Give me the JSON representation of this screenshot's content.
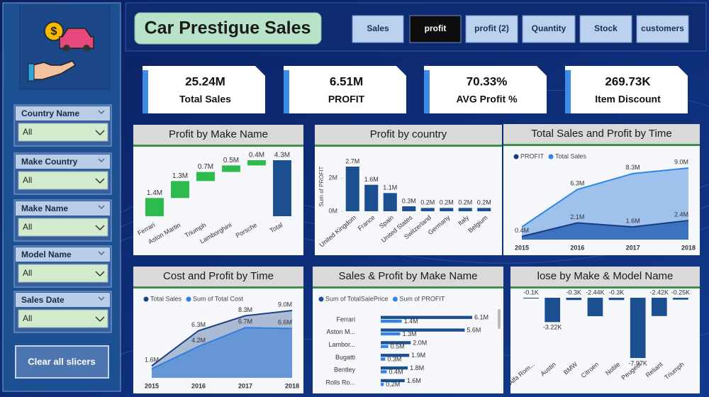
{
  "title": "Car Prestigue Sales",
  "tabs": [
    "Sales",
    "profit",
    "profit (2)",
    "Quantity",
    "Stock",
    "customers"
  ],
  "active_tab": 1,
  "slicers": [
    {
      "label": "Country Name",
      "value": "All"
    },
    {
      "label": "Make Country",
      "value": "All"
    },
    {
      "label": "Make Name",
      "value": "All"
    },
    {
      "label": "Model Name",
      "value": "All"
    },
    {
      "label": "Sales Date",
      "value": "All"
    }
  ],
  "clear_button": "Clear all slicers",
  "kpis": [
    {
      "value": "25.24M",
      "label": "Total Sales"
    },
    {
      "value": "6.51M",
      "label": "PROFIT"
    },
    {
      "value": "70.33%",
      "label": "AVG Profit %"
    },
    {
      "value": "269.73K",
      "label": "Item Discount"
    }
  ],
  "charts": [
    {
      "type": "waterfall",
      "title": "Profit by Make Name",
      "categories": [
        "Ferrari",
        "Aston Martin",
        "Triumph",
        "Lamborghini",
        "Porsche",
        "Total"
      ],
      "values": [
        1400000,
        1300000,
        700000,
        500000,
        400000,
        4300000
      ],
      "value_labels": [
        "1.4M",
        "1.3M",
        "0.7M",
        "0.5M",
        "0.4M",
        "4.3M"
      ],
      "color": "#2dbb4e",
      "total_color": "#1c4f8f"
    },
    {
      "type": "bar",
      "title": "Profit by country",
      "ylabel": "Sum of PROFIT",
      "categories": [
        "United Kingdom",
        "France",
        "Spain",
        "United States",
        "Switzerland",
        "Germany",
        "Italy",
        "Belgium"
      ],
      "values": [
        2700000,
        1600000,
        1100000,
        300000,
        200000,
        200000,
        200000,
        200000
      ],
      "value_labels": [
        "2.7M",
        "1.6M",
        "1.1M",
        "0.3M",
        "0.2M",
        "0.2M",
        "0.2M",
        "0.2M"
      ],
      "ylim": [
        0,
        3000000
      ],
      "yticks": [
        {
          "value": 0,
          "label": "0M"
        },
        {
          "value": 2000000,
          "label": "2M"
        }
      ],
      "color": "#1c4f8f"
    },
    {
      "type": "area",
      "title": "Total Sales and Profit by Time",
      "x": [
        2015,
        2016,
        2017,
        2018
      ],
      "series": [
        {
          "name": "PROFIT",
          "color": "#1a3a80",
          "fill": "#2b64b8",
          "values": [
            400000,
            2100000,
            1600000,
            2400000
          ],
          "value_labels": [
            "0.4M",
            "2.1M",
            "1.6M",
            "2.4M"
          ]
        },
        {
          "name": "Total Sales",
          "color": "#2f86e6",
          "fill": "#8fb8ea",
          "values": [
            1600000,
            6300000,
            8300000,
            9000000
          ],
          "value_labels": [
            null,
            "6.3M",
            "8.3M",
            "9.0M"
          ]
        }
      ]
    },
    {
      "type": "area",
      "title": "Cost and Profit by Time",
      "x": [
        2015,
        2016,
        2017,
        2018
      ],
      "series": [
        {
          "name": "Total Sales",
          "color": "#1f3f86",
          "fill": "#9fb0cc",
          "values": [
            1600000,
            6300000,
            8300000,
            9000000
          ],
          "value_labels": [
            "1.6M",
            "6.3M",
            "8.3M",
            "9.0M"
          ]
        },
        {
          "name": "Sum of Total Cost",
          "color": "#2f7fe0",
          "fill": "#5a8fd6",
          "values": [
            1200000,
            4200000,
            6700000,
            6600000
          ],
          "value_labels": [
            null,
            "4.2M",
            "6.7M",
            "6.6M"
          ]
        }
      ]
    },
    {
      "type": "hbar",
      "title": "Sales & Profit by Make Name",
      "categories": [
        "Ferrari",
        "Aston M...",
        "Lambor...",
        "Bugatti",
        "Bentley",
        "Rolls Ro..."
      ],
      "series": [
        {
          "name": "Sum of TotalSalePrice",
          "color": "#1c4f8f",
          "values": [
            6100000,
            5600000,
            2000000,
            1900000,
            1800000,
            1600000
          ],
          "value_labels": [
            "6.1M",
            "5.6M",
            "2.0M",
            "1.9M",
            "1.8M",
            "1.6M"
          ]
        },
        {
          "name": "Sum of PROFIT",
          "color": "#2f86e6",
          "values": [
            1400000,
            1300000,
            500000,
            300000,
            400000,
            200000
          ],
          "value_labels": [
            "1.4M",
            "1.3M",
            "0.5M",
            "0.3M",
            "0.4M",
            "0.2M"
          ]
        }
      ]
    },
    {
      "type": "bar",
      "title": "lose by Make & Model Name",
      "categories": [
        "Alfa Rom...",
        "Austin",
        "BMW",
        "Citroen",
        "Noble",
        "Peugeot",
        "Reliant",
        "Triumph"
      ],
      "values": [
        -100,
        -3220,
        -300,
        -2440,
        -300,
        -7970,
        -2420,
        -250
      ],
      "value_labels": [
        "-0.1K",
        "-3.22K",
        "-0.3K",
        "-2.44K",
        "-0.3K",
        "-7.97K",
        "-2.42K",
        "-0.25K"
      ],
      "color": "#1c4f8f"
    }
  ]
}
